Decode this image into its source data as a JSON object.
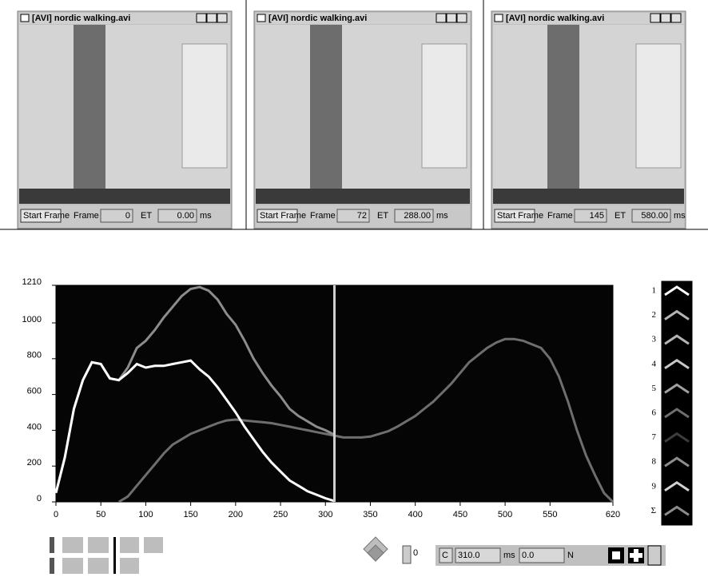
{
  "windows": [
    {
      "title": "[AVI] nordic walking.avi",
      "button": "Start Frame",
      "frame_label": "Frame",
      "frame": "0",
      "et_label": "ET",
      "et": "0.00",
      "unit": "ms"
    },
    {
      "title": "[AVI] nordic walking.avi",
      "button": "Start Frame",
      "frame_label": "Frame",
      "frame": "72",
      "et_label": "ET",
      "et": "288.00",
      "unit": "ms"
    },
    {
      "title": "[AVI] nordic walking.avi",
      "button": "Start Frame",
      "frame_label": "Frame",
      "frame": "145",
      "et_label": "ET",
      "et": "580.00",
      "unit": "ms"
    }
  ],
  "chart_data": {
    "type": "line",
    "x": [
      0,
      10,
      20,
      30,
      40,
      50,
      60,
      70,
      80,
      90,
      100,
      110,
      120,
      130,
      140,
      150,
      160,
      170,
      180,
      190,
      200,
      210,
      220,
      230,
      240,
      250,
      260,
      270,
      280,
      290,
      300,
      310,
      320,
      330,
      340,
      350,
      360,
      370,
      380,
      390,
      400,
      410,
      420,
      430,
      440,
      450,
      460,
      470,
      480,
      490,
      500,
      510,
      520,
      530,
      540,
      550,
      560,
      570,
      580,
      590,
      600,
      610,
      620
    ],
    "series": [
      {
        "color": "#ffffff",
        "values": [
          50,
          250,
          520,
          680,
          780,
          770,
          690,
          680,
          720,
          770,
          750,
          760,
          760,
          770,
          780,
          790,
          740,
          700,
          640,
          570,
          500,
          420,
          350,
          280,
          220,
          170,
          120,
          90,
          60,
          40,
          20,
          5,
          null,
          null,
          null,
          null,
          null,
          null,
          null,
          null,
          null,
          null,
          null,
          null,
          null,
          null,
          null,
          null,
          null,
          null,
          null,
          null,
          null,
          null,
          null,
          null,
          null,
          null,
          null,
          null,
          null,
          null,
          null
        ]
      },
      {
        "color": "#6e6e6e",
        "values": [
          null,
          null,
          null,
          null,
          null,
          null,
          null,
          0,
          30,
          90,
          150,
          210,
          270,
          320,
          350,
          380,
          400,
          420,
          440,
          455,
          460,
          455,
          450,
          445,
          440,
          430,
          420,
          410,
          400,
          390,
          380,
          370,
          360,
          360,
          360,
          365,
          380,
          395,
          420,
          450,
          480,
          520,
          560,
          610,
          660,
          720,
          780,
          820,
          860,
          890,
          910,
          910,
          900,
          880,
          860,
          800,
          700,
          560,
          400,
          260,
          150,
          50,
          0
        ]
      },
      {
        "color": "#8c8c8c",
        "values": [
          50,
          250,
          520,
          680,
          780,
          770,
          690,
          680,
          750,
          860,
          900,
          960,
          1030,
          1090,
          1150,
          1190,
          1200,
          1180,
          1130,
          1050,
          990,
          900,
          800,
          720,
          650,
          590,
          520,
          480,
          450,
          420,
          400,
          375,
          null,
          null,
          null,
          null,
          null,
          null,
          null,
          null,
          null,
          null,
          null,
          null,
          null,
          null,
          null,
          null,
          null,
          null,
          null,
          null,
          null,
          null,
          null,
          null,
          null,
          null,
          null,
          null,
          null,
          null,
          null
        ]
      }
    ],
    "xlim": [
      0,
      620
    ],
    "xticks": [
      0,
      50,
      100,
      150,
      200,
      250,
      300,
      350,
      400,
      450,
      500,
      550,
      620
    ],
    "ylim": [
      0,
      1210
    ],
    "yticks": [
      0,
      200,
      400,
      600,
      800,
      1000,
      1210
    ],
    "background": "#050505",
    "legend": [
      {
        "label": "1",
        "color": "#ffffff"
      },
      {
        "label": "2",
        "color": "#b4b4b4"
      },
      {
        "label": "3",
        "color": "#b4b4b4"
      },
      {
        "label": "4",
        "color": "#c8c8c8"
      },
      {
        "label": "5",
        "color": "#a0a0a0"
      },
      {
        "label": "6",
        "color": "#6e6e6e"
      },
      {
        "label": "7",
        "color": "#3c3c3c"
      },
      {
        "label": "8",
        "color": "#8c8c8c"
      },
      {
        "label": "9",
        "color": "#d2d2d2"
      },
      {
        "label": "Σ",
        "color": "#8c8c8c"
      }
    ]
  },
  "toolbar": {
    "spin": "0",
    "channel": "C",
    "time": {
      "value": 310,
      "label": "310.0"
    },
    "time_unit": "ms",
    "force": {
      "value": 0,
      "label": "0.0"
    },
    "force_unit": "N"
  }
}
